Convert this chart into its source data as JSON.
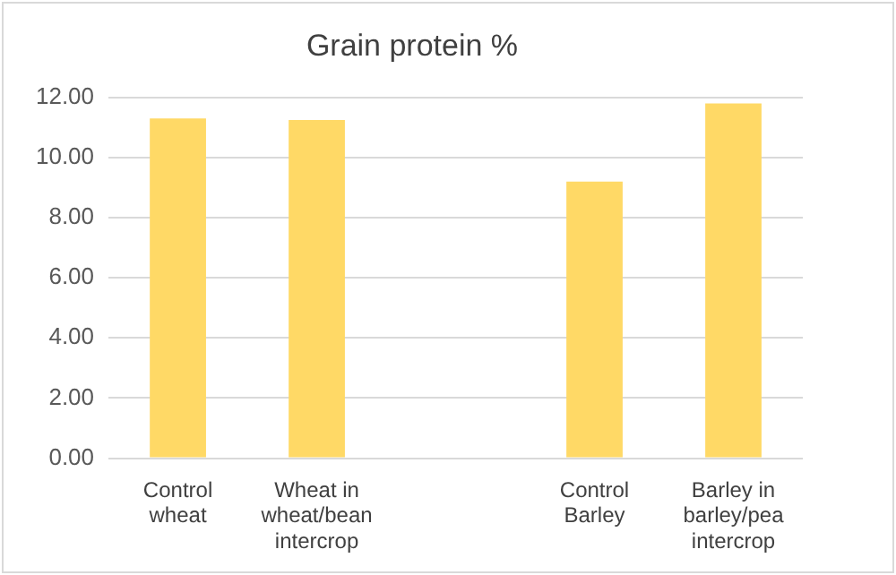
{
  "chart_data": {
    "type": "bar",
    "title": "Grain protein %",
    "categories": [
      "Control wheat",
      "Wheat in wheat/bean intercrop",
      null,
      "Control Barley",
      "Barley in barley/pea intercrop"
    ],
    "values": [
      11.3,
      11.25,
      null,
      9.2,
      11.8
    ],
    "color": "#ffd966",
    "ylim": [
      0,
      12
    ],
    "yticks": [
      {
        "value": 0,
        "label": "0.00"
      },
      {
        "value": 2,
        "label": "2.00"
      },
      {
        "value": 4,
        "label": "4.00"
      },
      {
        "value": 6,
        "label": "6.00"
      },
      {
        "value": 8,
        "label": "8.00"
      },
      {
        "value": 10,
        "label": "10.00"
      },
      {
        "value": 12,
        "label": "12.00"
      }
    ],
    "grid": "y"
  }
}
